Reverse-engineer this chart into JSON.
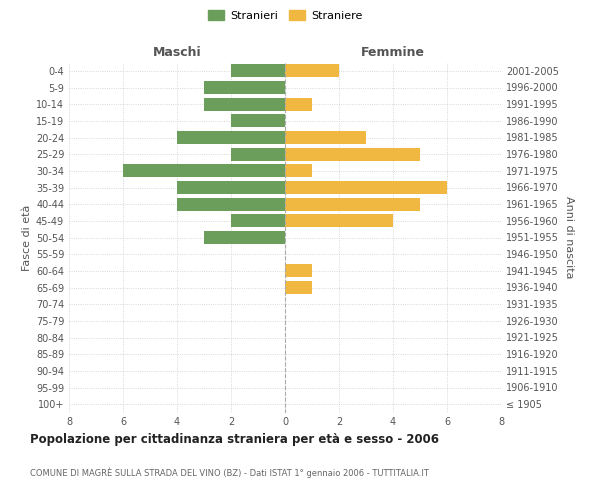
{
  "age_groups": [
    "100+",
    "95-99",
    "90-94",
    "85-89",
    "80-84",
    "75-79",
    "70-74",
    "65-69",
    "60-64",
    "55-59",
    "50-54",
    "45-49",
    "40-44",
    "35-39",
    "30-34",
    "25-29",
    "20-24",
    "15-19",
    "10-14",
    "5-9",
    "0-4"
  ],
  "birth_years": [
    "≤ 1905",
    "1906-1910",
    "1911-1915",
    "1916-1920",
    "1921-1925",
    "1926-1930",
    "1931-1935",
    "1936-1940",
    "1941-1945",
    "1946-1950",
    "1951-1955",
    "1956-1960",
    "1961-1965",
    "1966-1970",
    "1971-1975",
    "1976-1980",
    "1981-1985",
    "1986-1990",
    "1991-1995",
    "1996-2000",
    "2001-2005"
  ],
  "maschi": [
    0,
    0,
    0,
    0,
    0,
    0,
    0,
    0,
    0,
    0,
    3,
    2,
    4,
    4,
    6,
    2,
    4,
    2,
    3,
    3,
    2
  ],
  "femmine": [
    0,
    0,
    0,
    0,
    0,
    0,
    0,
    1,
    1,
    0,
    0,
    4,
    5,
    6,
    1,
    5,
    3,
    0,
    1,
    0,
    2
  ],
  "color_maschi": "#6a9e5a",
  "color_femmine": "#f0b840",
  "title": "Popolazione per cittadinanza straniera per età e sesso - 2006",
  "subtitle": "COMUNE DI MAGRÈ SULLA STRADA DEL VINO (BZ) - Dati ISTAT 1° gennaio 2006 - TUTTITALIA.IT",
  "ylabel_left": "Fasce di età",
  "ylabel_right": "Anni di nascita",
  "xlabel_max": 8,
  "background_color": "#ffffff",
  "grid_color": "#cccccc",
  "legend_stranieri": "Stranieri",
  "legend_straniere": "Straniere",
  "maschi_label": "Maschi",
  "femmine_label": "Femmine"
}
